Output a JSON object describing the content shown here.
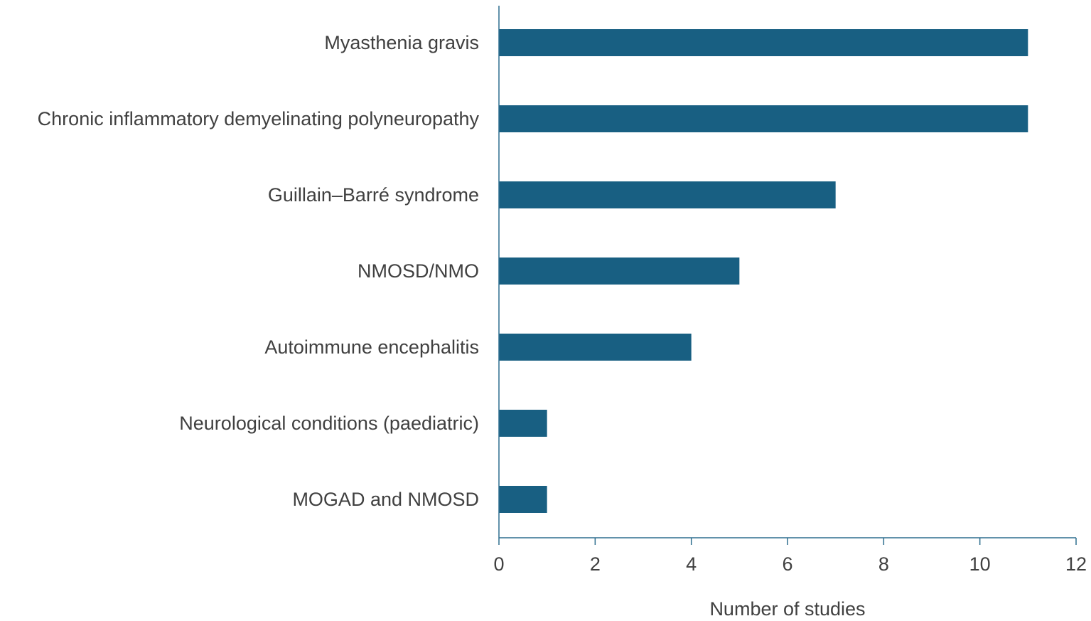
{
  "chart_data": {
    "type": "bar",
    "orientation": "horizontal",
    "categories": [
      "Myasthenia gravis",
      "Chronic inflammatory demyelinating polyneuropathy",
      "Guillain–Barré syndrome",
      "NMOSD/NMO",
      "Autoimmune encephalitis",
      "Neurological conditions (paediatric)",
      "MOGAD and NMOSD"
    ],
    "values": [
      11,
      11,
      7,
      5,
      4,
      1,
      1
    ],
    "title": "",
    "xlabel": "Number of studies",
    "ylabel": "",
    "xlim": [
      0,
      12
    ],
    "xticks": [
      0,
      2,
      4,
      6,
      8,
      10,
      12
    ],
    "grid": false,
    "legend": "none",
    "bar_color": "#185f82",
    "axis_color": "#2f6f8f",
    "text_color": "#404040"
  }
}
